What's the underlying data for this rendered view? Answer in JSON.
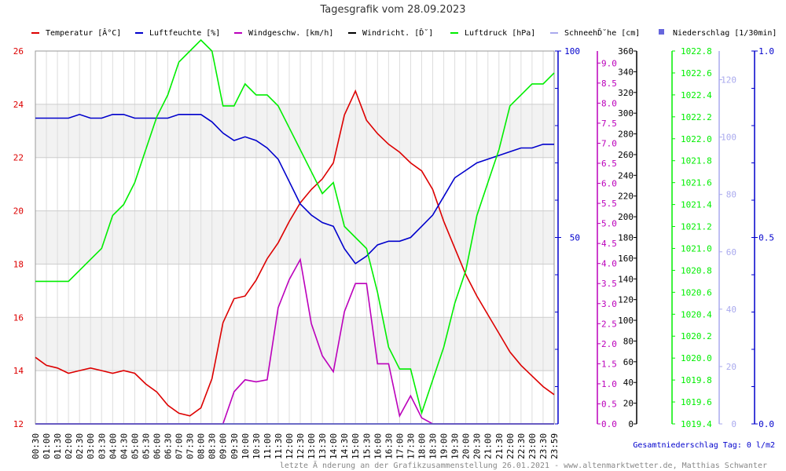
{
  "title": "Tagesgrafik vom 28.09.2023",
  "legend": [
    {
      "label": "Temperatur [Â°C]",
      "color": "#dd0000",
      "type": "line"
    },
    {
      "label": "Luftfeuchte [%]",
      "color": "#0000cc",
      "type": "line"
    },
    {
      "label": "Windgeschw. [km/h]",
      "color": "#bb00bb",
      "type": "line"
    },
    {
      "label": "Windricht. [Ď˘]",
      "color": "#000000",
      "type": "line"
    },
    {
      "label": "Luftdruck [hPa]",
      "color": "#00ee00",
      "type": "line"
    },
    {
      "label": "SchneehĎ˘he [cm]",
      "color": "#aaaaee",
      "type": "line"
    },
    {
      "label": "Niederschlag [1/30min]",
      "color": "#6666dd",
      "type": "box"
    }
  ],
  "total_precip": "Gesamtniederschlag Tag: 0 l/m2",
  "footer": "letzte Ă nderung an der Grafikzusammenstellung 26.01.2021 - www.altenmarktwetter.de, Matthias Schwanter",
  "chart_data": {
    "type": "line",
    "x": [
      "00:30",
      "01:00",
      "01:30",
      "02:00",
      "02:30",
      "03:00",
      "03:30",
      "04:00",
      "04:30",
      "05:00",
      "05:30",
      "06:00",
      "06:30",
      "07:00",
      "07:30",
      "08:00",
      "08:30",
      "09:00",
      "09:30",
      "10:00",
      "10:30",
      "11:00",
      "11:30",
      "12:00",
      "12:30",
      "13:00",
      "13:30",
      "14:00",
      "14:30",
      "15:00",
      "15:30",
      "16:00",
      "16:30",
      "17:00",
      "17:30",
      "18:00",
      "18:30",
      "19:00",
      "19:30",
      "20:00",
      "20:30",
      "21:00",
      "21:30",
      "22:00",
      "22:30",
      "23:00",
      "23:30",
      "23:59"
    ],
    "axes": [
      {
        "id": "temp",
        "color": "#dd0000",
        "side": "left",
        "ylim": [
          12,
          26
        ],
        "ticks": [
          "12",
          "14",
          "16",
          "18",
          "20",
          "22",
          "24",
          "26"
        ]
      },
      {
        "id": "hum",
        "color": "#0000cc",
        "side": "right",
        "ylim": [
          0,
          100
        ],
        "ticks": [
          "50",
          "100"
        ]
      },
      {
        "id": "wind",
        "color": "#bb00bb",
        "side": "right",
        "ylim": [
          0,
          9.3
        ],
        "ticks": [
          "0.0",
          "0.5",
          "1.0",
          "1.5",
          "2.0",
          "2.5",
          "3.0",
          "3.5",
          "4.0",
          "4.5",
          "5.0",
          "5.5",
          "6.0",
          "6.5",
          "7.0",
          "7.5",
          "8.0",
          "8.5",
          "9.0"
        ]
      },
      {
        "id": "dir",
        "color": "#000000",
        "side": "right",
        "ylim": [
          0,
          360
        ],
        "ticks": [
          "0",
          "20",
          "40",
          "60",
          "80",
          "100",
          "120",
          "140",
          "160",
          "180",
          "200",
          "220",
          "240",
          "260",
          "280",
          "300",
          "320",
          "340",
          "360"
        ]
      },
      {
        "id": "press",
        "color": "#00ee00",
        "side": "right",
        "ylim": [
          1019.4,
          1022.8
        ],
        "ticks": [
          "1019.4",
          "1019.6",
          "1019.8",
          "1020.0",
          "1020.2",
          "1020.4",
          "1020.6",
          "1020.8",
          "1021.0",
          "1021.2",
          "1021.4",
          "1021.6",
          "1021.8",
          "1022.0",
          "1022.2",
          "1022.4",
          "1022.6",
          "1022.8"
        ]
      },
      {
        "id": "snow",
        "color": "#aaaaee",
        "side": "right",
        "ylim": [
          0,
          130
        ],
        "ticks": [
          "0",
          "20",
          "40",
          "60",
          "80",
          "100",
          "120"
        ]
      },
      {
        "id": "precip",
        "color": "#0000cc",
        "side": "right",
        "ylim": [
          0,
          1
        ],
        "ticks": [
          "0.0",
          "0.5",
          "1.0"
        ]
      }
    ],
    "series": [
      {
        "name": "Temperatur [Â°C]",
        "axis": "temp",
        "color": "#dd0000",
        "values": [
          14.5,
          14.2,
          14.1,
          13.9,
          14.0,
          14.1,
          14.0,
          13.9,
          14.0,
          13.9,
          13.5,
          13.2,
          12.7,
          12.4,
          12.3,
          12.6,
          13.7,
          15.8,
          16.7,
          16.8,
          17.4,
          18.2,
          18.8,
          19.6,
          20.3,
          20.8,
          21.2,
          21.8,
          23.6,
          24.5,
          23.4,
          22.9,
          22.5,
          22.2,
          21.8,
          21.5,
          20.8,
          19.6,
          18.6,
          17.6,
          16.8,
          16.1,
          15.4,
          14.7,
          14.2,
          13.8,
          13.4,
          13.1
        ]
      },
      {
        "name": "Luftfeuchte [%]",
        "axis": "hum",
        "color": "#0000cc",
        "values": [
          82,
          82,
          82,
          82,
          83,
          82,
          82,
          83,
          83,
          82,
          82,
          82,
          82,
          83,
          83,
          83,
          81,
          78,
          76,
          77,
          76,
          74,
          71,
          65,
          59,
          56,
          54,
          53,
          47,
          43,
          45,
          48,
          49,
          49,
          50,
          53,
          56,
          61,
          66,
          68,
          70,
          71,
          72,
          73,
          74,
          74,
          75,
          75
        ]
      },
      {
        "name": "Windgeschw. [km/h]",
        "axis": "wind",
        "color": "#bb00bb",
        "values": [
          0,
          0,
          0,
          0,
          0,
          0,
          0,
          0,
          0,
          0,
          0,
          0,
          0,
          0,
          0,
          0,
          0,
          0,
          0.8,
          1.1,
          1.05,
          1.1,
          2.9,
          3.6,
          4.1,
          2.5,
          1.7,
          1.3,
          2.8,
          3.5,
          3.5,
          1.5,
          1.5,
          0.2,
          0.7,
          0.15,
          0,
          0,
          0,
          0,
          0,
          0,
          0,
          0,
          0,
          0,
          0,
          0
        ]
      },
      {
        "name": "Windricht. [Ď˘]",
        "axis": "dir",
        "color": "#000000",
        "values": [
          0,
          0,
          0,
          0,
          0,
          0,
          0,
          0,
          0,
          0,
          0,
          0,
          0,
          0,
          0,
          0,
          0,
          0,
          0,
          0,
          0,
          0,
          0,
          0,
          0,
          0,
          0,
          0,
          0,
          0,
          0,
          0,
          0,
          0,
          0,
          0,
          0,
          0,
          0,
          0,
          0,
          0,
          0,
          0,
          0,
          0,
          0,
          0
        ]
      },
      {
        "name": "Luftdruck [hPa]",
        "axis": "press",
        "color": "#00ee00",
        "values": [
          1020.7,
          1020.7,
          1020.7,
          1020.7,
          1020.8,
          1020.9,
          1021.0,
          1021.3,
          1021.4,
          1021.6,
          1021.9,
          1022.2,
          1022.4,
          1022.7,
          1022.8,
          1022.9,
          1022.8,
          1022.3,
          1022.3,
          1022.5,
          1022.4,
          1022.4,
          1022.3,
          1022.1,
          1021.9,
          1021.7,
          1021.5,
          1021.6,
          1021.2,
          1021.1,
          1021.0,
          1020.6,
          1020.1,
          1019.9,
          1019.9,
          1019.5,
          1019.8,
          1020.1,
          1020.5,
          1020.8,
          1021.3,
          1021.6,
          1021.9,
          1022.3,
          1022.4,
          1022.5,
          1022.5,
          1022.6
        ]
      },
      {
        "name": "Niederschlag [1/30min]",
        "axis": "precip",
        "color": "#6666dd",
        "values": [
          0,
          0,
          0,
          0,
          0,
          0,
          0,
          0,
          0,
          0,
          0,
          0,
          0,
          0,
          0,
          0,
          0,
          0,
          0,
          0,
          0,
          0,
          0,
          0,
          0,
          0,
          0,
          0,
          0,
          0,
          0,
          0,
          0,
          0,
          0,
          0,
          0,
          0,
          0,
          0,
          0,
          0,
          0,
          0,
          0,
          0,
          0,
          0
        ]
      }
    ],
    "grid": true
  }
}
